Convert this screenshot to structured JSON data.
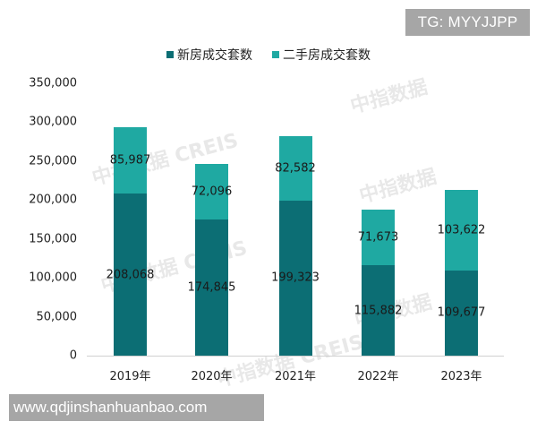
{
  "overlays": {
    "tg_label": "TG: MYYJJPP",
    "url_label": "www.qdjinshanhuanbao.com"
  },
  "watermarks": [
    "中指数据 CREIS",
    "中指数据",
    "中指数据 CREIS",
    "中指数据",
    "中指数据 CREIS",
    "中指数据"
  ],
  "colors": {
    "new_homes": "#0c6e74",
    "second_hand": "#1fa9a2",
    "axis": "#d0d0d0"
  },
  "chart_data": {
    "type": "bar",
    "stacked": true,
    "title": "",
    "xlabel": "",
    "ylabel": "",
    "categories": [
      "2019年",
      "2020年",
      "2021年",
      "2022年",
      "2023年"
    ],
    "series": [
      {
        "name": "新房成交套数",
        "color": "#0c6e74",
        "values": [
          208068,
          174845,
          199323,
          115882,
          109677
        ],
        "labels": [
          "208,068",
          "174,845",
          "199,323",
          "115,882",
          "109,677"
        ]
      },
      {
        "name": "二手房成交套数",
        "color": "#1fa9a2",
        "values": [
          85987,
          72096,
          82582,
          71673,
          103622
        ],
        "labels": [
          "85,987",
          "72,096",
          "82,582",
          "71,673",
          "103,622"
        ]
      }
    ],
    "ylim": [
      0,
      350000
    ],
    "yticks": [
      0,
      50000,
      100000,
      150000,
      200000,
      250000,
      300000,
      350000
    ],
    "ytick_labels": [
      "0",
      "50,000",
      "100,000",
      "150,000",
      "200,000",
      "250,000",
      "300,000",
      "350,000"
    ],
    "grid": false,
    "legend_position": "top"
  }
}
